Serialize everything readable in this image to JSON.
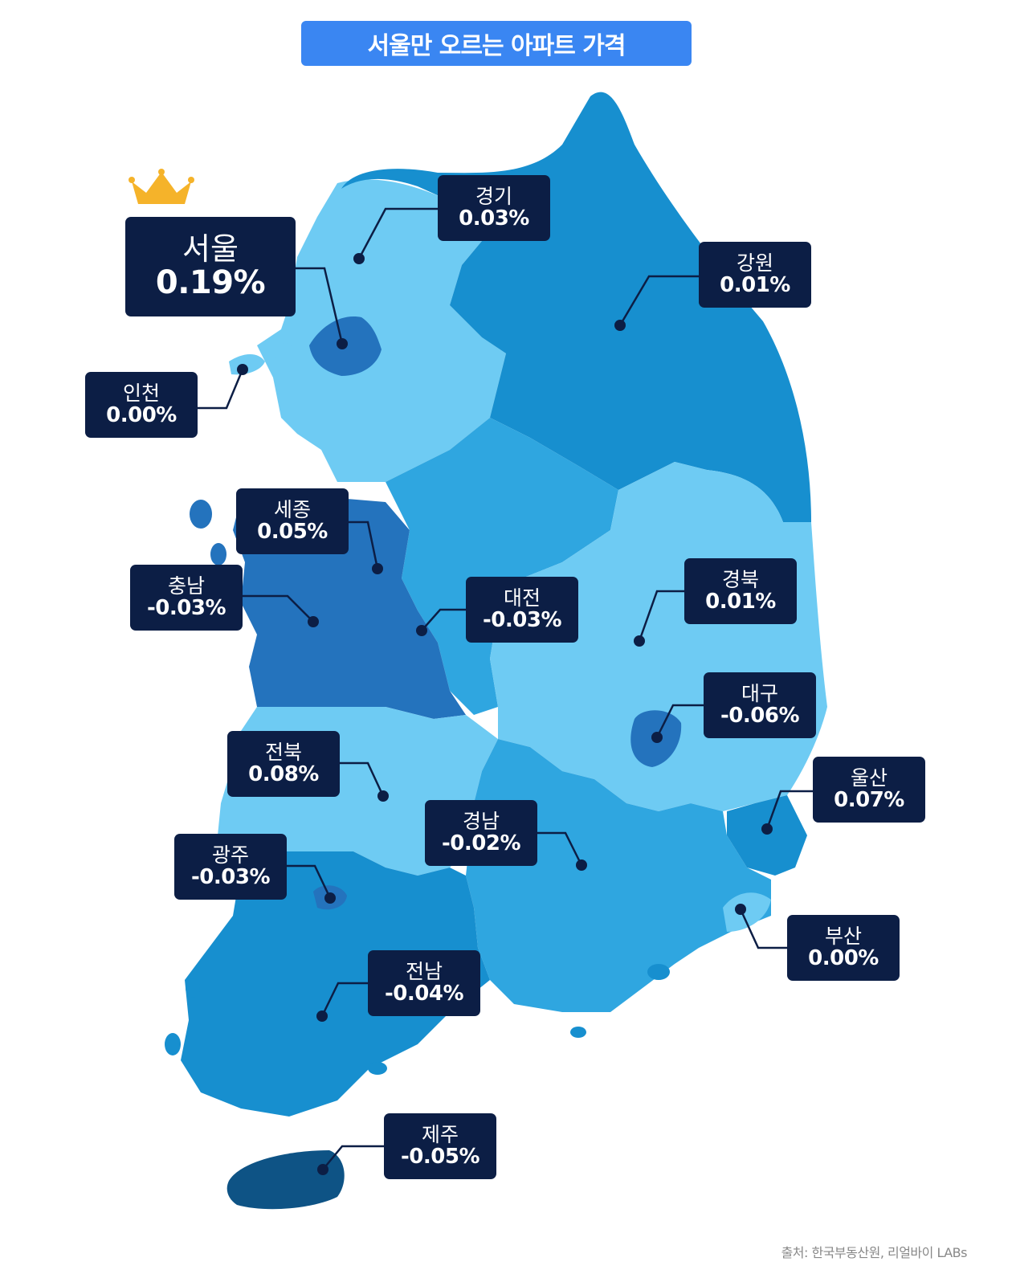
{
  "title": "서울만 오르는 아파트 가격",
  "source": "출처: 한국부동산원, 리얼바이 LABs",
  "highlight_icon": "crown-icon",
  "colors": {
    "banner": "#3a86f2",
    "label_bg": "#0c1e45",
    "light": "#6ecbf3",
    "mid": "#2fa6e0",
    "dark": "#178fcf",
    "deep": "#2473bd",
    "jeju": "#0e5385",
    "crown": "#f5b32a"
  },
  "regions": [
    {
      "id": "seoul",
      "name": "서울",
      "value": "0.19%"
    },
    {
      "id": "gyeonggi",
      "name": "경기",
      "value": "0.03%"
    },
    {
      "id": "gangwon",
      "name": "강원",
      "value": "0.01%"
    },
    {
      "id": "incheon",
      "name": "인천",
      "value": "0.00%"
    },
    {
      "id": "sejong",
      "name": "세종",
      "value": "0.05%"
    },
    {
      "id": "chungnam",
      "name": "충남",
      "value": "-0.03%"
    },
    {
      "id": "daejeon",
      "name": "대전",
      "value": "-0.03%"
    },
    {
      "id": "gyeongbuk",
      "name": "경북",
      "value": "0.01%"
    },
    {
      "id": "daegu",
      "name": "대구",
      "value": "-0.06%"
    },
    {
      "id": "jeonbuk",
      "name": "전북",
      "value": "0.08%"
    },
    {
      "id": "ulsan",
      "name": "울산",
      "value": "0.07%"
    },
    {
      "id": "gyeongnam",
      "name": "경남",
      "value": "-0.02%"
    },
    {
      "id": "gwangju",
      "name": "광주",
      "value": "-0.03%"
    },
    {
      "id": "busan",
      "name": "부산",
      "value": "0.00%"
    },
    {
      "id": "jeonnam",
      "name": "전남",
      "value": "-0.04%"
    },
    {
      "id": "jeju",
      "name": "제주",
      "value": "-0.05%"
    }
  ]
}
